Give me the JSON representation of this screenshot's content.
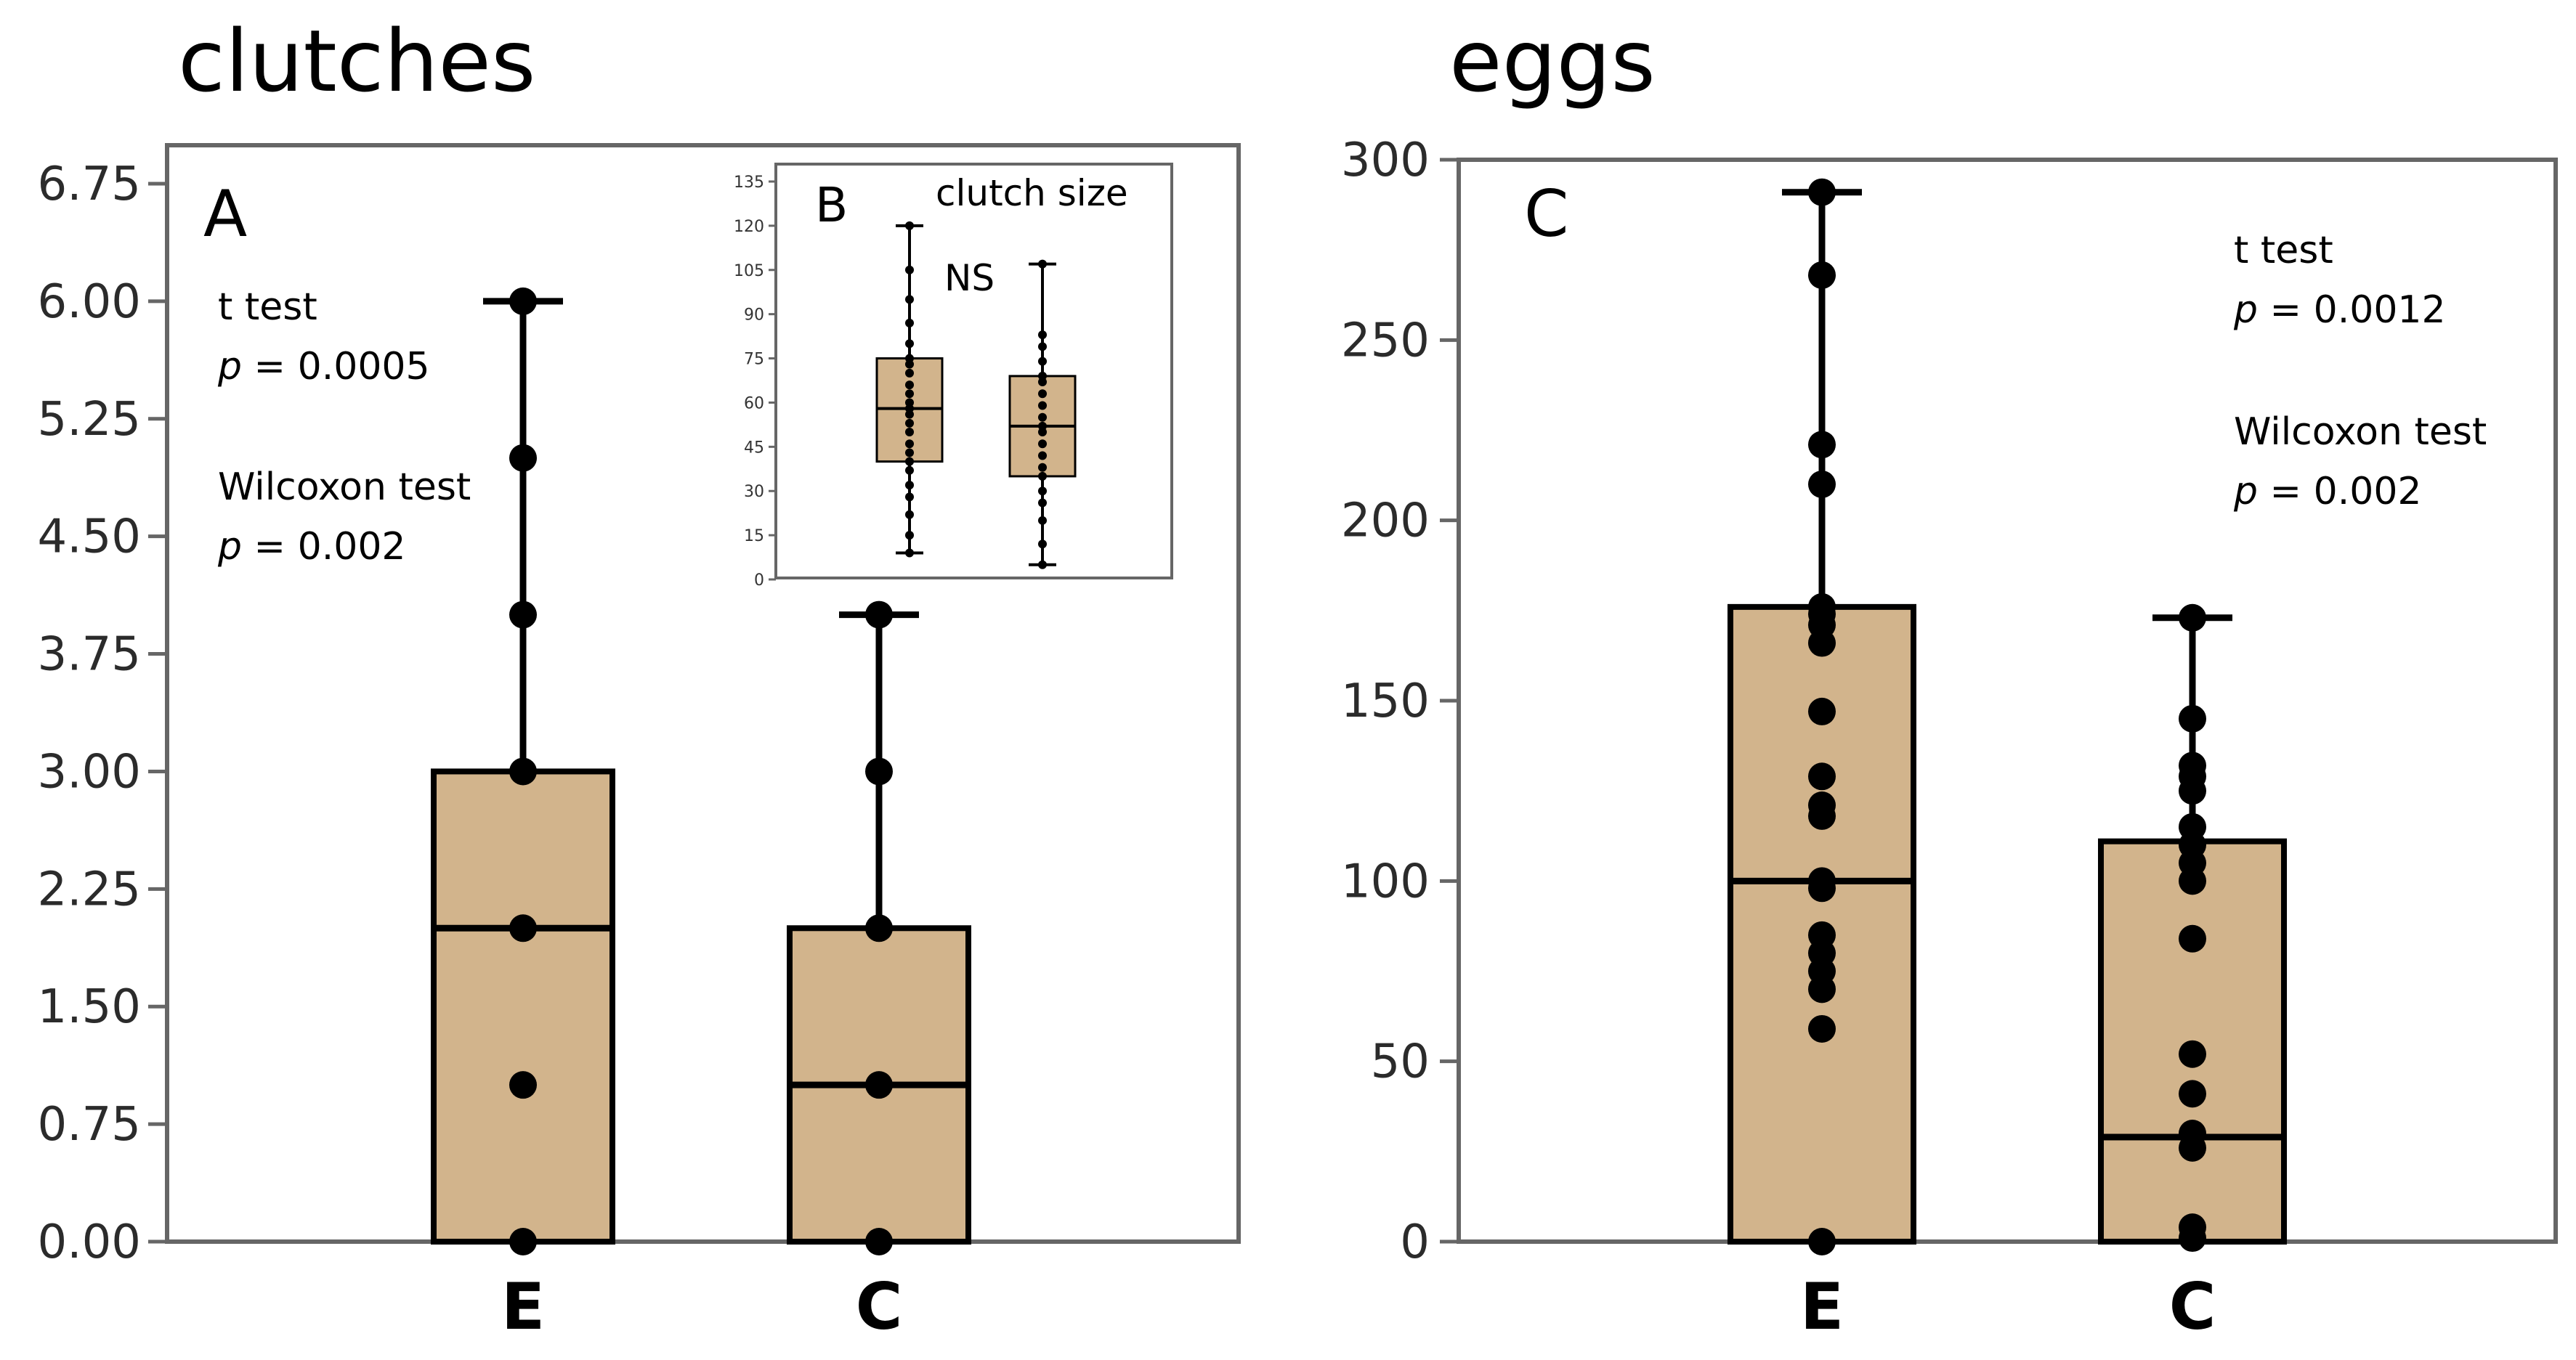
{
  "figure": {
    "left_title": "clutches",
    "right_title": "eggs"
  },
  "colors": {
    "box_fill": "#D2B48C",
    "frame": "#666666",
    "ink": "#000000"
  },
  "chart_data": [
    {
      "panel": "A",
      "type": "box",
      "categories": [
        "E",
        "C"
      ],
      "ylim": [
        0,
        6.75
      ],
      "yticks": [
        "0.00",
        "0.75",
        "1.50",
        "2.25",
        "3.00",
        "3.75",
        "4.50",
        "5.25",
        "6.00",
        "6.75"
      ],
      "boxes": [
        {
          "category": "E",
          "min": 0,
          "q1": 0,
          "median": 2,
          "q3": 3,
          "max": 6
        },
        {
          "category": "C",
          "min": 0,
          "q1": 0,
          "median": 1,
          "q3": 2,
          "max": 4
        }
      ],
      "points": {
        "E": [
          0,
          1,
          2,
          3,
          4,
          5,
          6
        ],
        "C": [
          0,
          1,
          2,
          3,
          4
        ]
      },
      "annotations": {
        "t_label": "t test",
        "t_p_label": "p",
        "t_p_value": " = 0.0005",
        "w_label": "Wilcoxon test",
        "w_p_label": "p",
        "w_p_value": " = 0.002"
      },
      "grid": false
    },
    {
      "panel": "B",
      "title": "clutch size",
      "type": "box",
      "categories": [
        "E",
        "C"
      ],
      "ylim": [
        0,
        135
      ],
      "yticks": [
        "0",
        "15",
        "30",
        "45",
        "60",
        "75",
        "90",
        "105",
        "120",
        "135"
      ],
      "boxes": [
        {
          "category": "E",
          "min": 9,
          "q1": 40,
          "median": 58,
          "q3": 75,
          "max": 120
        },
        {
          "category": "C",
          "min": 5,
          "q1": 35,
          "median": 52,
          "q3": 69,
          "max": 107
        }
      ],
      "points": {
        "E": [
          9,
          15,
          22,
          28,
          32,
          37,
          40,
          43,
          46,
          50,
          53,
          56,
          58,
          60,
          63,
          66,
          70,
          73,
          75,
          80,
          87,
          95,
          105,
          120
        ],
        "C": [
          5,
          12,
          20,
          26,
          30,
          35,
          38,
          42,
          46,
          50,
          52,
          55,
          59,
          63,
          67,
          69,
          74,
          79,
          83,
          107
        ]
      },
      "annotations": {
        "sig": "NS"
      },
      "grid": false
    },
    {
      "panel": "C",
      "type": "box",
      "categories": [
        "E",
        "C"
      ],
      "ylim": [
        0,
        300
      ],
      "yticks": [
        "0",
        "50",
        "100",
        "150",
        "200",
        "250",
        "300"
      ],
      "boxes": [
        {
          "category": "E",
          "min": 0,
          "q1": 0,
          "median": 100,
          "q3": 176,
          "max": 291
        },
        {
          "category": "C",
          "min": 0,
          "q1": 0,
          "median": 29,
          "q3": 111,
          "max": 173
        }
      ],
      "points": {
        "E": [
          0,
          59,
          70,
          75,
          80,
          85,
          98,
          100,
          118,
          121,
          129,
          147,
          166,
          171,
          174,
          176,
          210,
          221,
          268,
          291
        ],
        "C": [
          1,
          4,
          26,
          30,
          41,
          52,
          84,
          100,
          105,
          110,
          115,
          125,
          129,
          132,
          145,
          173
        ]
      },
      "annotations": {
        "t_label": "t test",
        "t_p_label": "p",
        "t_p_value": " = 0.0012",
        "w_label": "Wilcoxon test",
        "w_p_label": "p",
        "w_p_value": " = 0.002"
      },
      "grid": false
    }
  ]
}
